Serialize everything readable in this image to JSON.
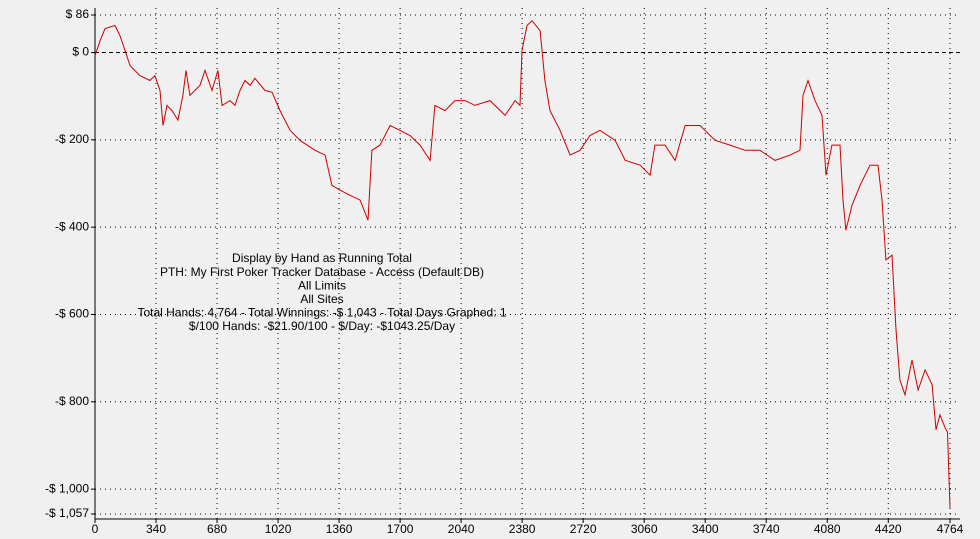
{
  "chart_data": {
    "type": "line",
    "annotations": [
      "Display by Hand as Running Total",
      "PTH: My First Poker Tracker Database - Access (Default DB)",
      "All Limits",
      "All Sites",
      "Total Hands: 4,764 - Total Winnings: -$ 1,043 - Total Days Graphed: 1",
      "$/100 Hands: -$21.90/100 - $/Day: -$1043.25/Day"
    ],
    "x": [
      0,
      28,
      56,
      111,
      139,
      167,
      195,
      251,
      306,
      334,
      362,
      379,
      401,
      429,
      462,
      490,
      507,
      529,
      585,
      613,
      652,
      685,
      708,
      752,
      780,
      808,
      836,
      864,
      891,
      947,
      986,
      1031,
      1087,
      1142,
      1226,
      1282,
      1320,
      1365,
      1421,
      1477,
      1521,
      1543,
      1588,
      1644,
      1699,
      1755,
      1811,
      1867,
      1894,
      1950,
      2006,
      2062,
      2117,
      2201,
      2285,
      2341,
      2368,
      2379,
      2407,
      2435,
      2480,
      2507,
      2535,
      2591,
      2647,
      2703,
      2758,
      2814,
      2898,
      2954,
      3037,
      3093,
      3120,
      3176,
      3232,
      3288,
      3371,
      3455,
      3538,
      3622,
      3705,
      3789,
      3873,
      3928,
      3945,
      3973,
      4012,
      4051,
      4073,
      4106,
      4151,
      4168,
      4184,
      4218,
      4263,
      4318,
      4363,
      4385,
      4407,
      4441,
      4463,
      4485,
      4513,
      4552,
      4586,
      4625,
      4664,
      4686,
      4708,
      4736,
      4750,
      4764
    ],
    "series": [
      {
        "color": "#cc0000",
        "values": [
          -7,
          27,
          55,
          62,
          39,
          5,
          -30,
          -53,
          -64,
          -53,
          -87,
          -167,
          -121,
          -133,
          -155,
          -98,
          -41,
          -98,
          -75,
          -41,
          -87,
          -41,
          -121,
          -110,
          -121,
          -87,
          -64,
          -75,
          -59,
          -87,
          -91,
          -133,
          -178,
          -201,
          -224,
          -235,
          -304,
          -315,
          -327,
          -338,
          -384,
          -224,
          -212,
          -167,
          -178,
          -190,
          -212,
          -247,
          -121,
          -133,
          -110,
          -110,
          -121,
          -110,
          -144,
          -110,
          -121,
          5,
          62,
          73,
          50,
          -64,
          -133,
          -178,
          -235,
          -224,
          -190,
          -178,
          -201,
          -247,
          -258,
          -281,
          -212,
          -212,
          -247,
          -167,
          -167,
          -201,
          -212,
          -224,
          -224,
          -247,
          -235,
          -224,
          -98,
          -64,
          -110,
          -144,
          -281,
          -212,
          -212,
          -338,
          -407,
          -350,
          -304,
          -258,
          -258,
          -338,
          -475,
          -464,
          -635,
          -750,
          -784,
          -704,
          -773,
          -727,
          -761,
          -864,
          -830,
          -859,
          -870,
          -1043
        ]
      }
    ],
    "xlim": [
      0,
      4764
    ],
    "xticks": [
      0,
      340,
      680,
      1020,
      1360,
      1700,
      2040,
      2380,
      2720,
      3060,
      3400,
      3740,
      4080,
      4420,
      4764
    ],
    "ylim": [
      -1057,
      86
    ],
    "yticks": [
      {
        "value": 86,
        "label": "$ 86"
      },
      {
        "value": 0,
        "label": "$ 0"
      },
      {
        "value": -200,
        "label": "-$ 200"
      },
      {
        "value": -400,
        "label": "-$ 400"
      },
      {
        "value": -600,
        "label": "-$ 600"
      },
      {
        "value": -800,
        "label": "-$ 800"
      },
      {
        "value": -1000,
        "label": "-$ 1,000"
      },
      {
        "value": -1057,
        "label": "-$ 1,057"
      }
    ],
    "grid": true
  }
}
